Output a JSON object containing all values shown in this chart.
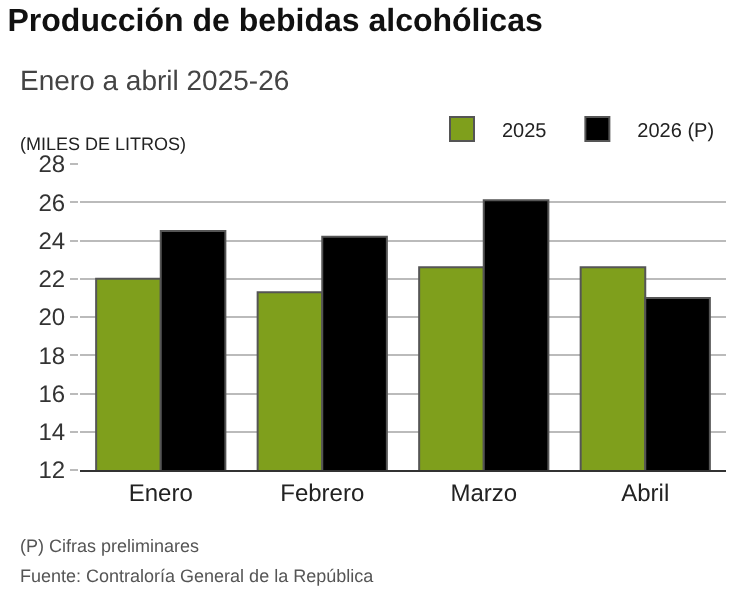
{
  "chart_data": {
    "type": "bar",
    "title": "Producción de bebidas alcohólicas",
    "subtitle": "Enero a abril 2025-26",
    "ylabel": "(MILES DE LITROS)",
    "categories": [
      "Enero",
      "Febrero",
      "Marzo",
      "Abril"
    ],
    "series": [
      {
        "name": "2025",
        "color": "#7f9f1c",
        "values": [
          22.0,
          21.3,
          22.6,
          22.6
        ]
      },
      {
        "name": "2026 (P)",
        "color": "#000000",
        "values": [
          24.5,
          24.2,
          26.1,
          21.0
        ]
      }
    ],
    "ylim": [
      12,
      28
    ],
    "yticks": [
      12,
      14,
      16,
      18,
      20,
      22,
      24,
      26,
      28
    ],
    "grid": "y",
    "legend": "top right",
    "annotations": [
      "(P) Cifras preliminares",
      "Fuente: Contraloría General de la República"
    ]
  }
}
